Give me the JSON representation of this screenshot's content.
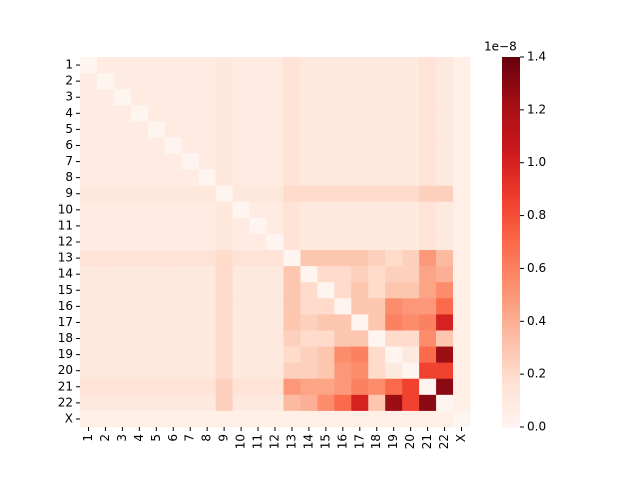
{
  "chart_data": {
    "type": "heatmap",
    "categories": [
      "1",
      "2",
      "3",
      "4",
      "5",
      "6",
      "7",
      "8",
      "9",
      "10",
      "11",
      "12",
      "13",
      "14",
      "15",
      "16",
      "17",
      "18",
      "19",
      "20",
      "21",
      "22",
      "X"
    ],
    "values": [
      [
        0,
        0.08,
        0.08,
        0.08,
        0.08,
        0.08,
        0.08,
        0.08,
        0.12,
        0.08,
        0.08,
        0.08,
        0.15,
        0.1,
        0.1,
        0.1,
        0.1,
        0.1,
        0.1,
        0.1,
        0.15,
        0.1,
        0.05
      ],
      [
        0.08,
        0,
        0.08,
        0.08,
        0.08,
        0.08,
        0.08,
        0.08,
        0.12,
        0.08,
        0.08,
        0.08,
        0.15,
        0.1,
        0.1,
        0.1,
        0.1,
        0.1,
        0.1,
        0.1,
        0.15,
        0.1,
        0.05
      ],
      [
        0.08,
        0.08,
        0,
        0.08,
        0.08,
        0.08,
        0.08,
        0.08,
        0.12,
        0.08,
        0.08,
        0.08,
        0.15,
        0.1,
        0.1,
        0.1,
        0.1,
        0.1,
        0.1,
        0.1,
        0.15,
        0.1,
        0.05
      ],
      [
        0.08,
        0.08,
        0.08,
        0,
        0.08,
        0.08,
        0.08,
        0.08,
        0.12,
        0.08,
        0.08,
        0.08,
        0.15,
        0.1,
        0.1,
        0.1,
        0.1,
        0.1,
        0.1,
        0.1,
        0.15,
        0.1,
        0.05
      ],
      [
        0.08,
        0.08,
        0.08,
        0.08,
        0,
        0.08,
        0.08,
        0.08,
        0.12,
        0.08,
        0.08,
        0.08,
        0.15,
        0.1,
        0.1,
        0.1,
        0.1,
        0.1,
        0.1,
        0.1,
        0.15,
        0.1,
        0.05
      ],
      [
        0.08,
        0.08,
        0.08,
        0.08,
        0.08,
        0,
        0.08,
        0.08,
        0.12,
        0.08,
        0.08,
        0.08,
        0.15,
        0.1,
        0.1,
        0.1,
        0.1,
        0.1,
        0.1,
        0.1,
        0.15,
        0.1,
        0.05
      ],
      [
        0.08,
        0.08,
        0.08,
        0.08,
        0.08,
        0.08,
        0,
        0.08,
        0.12,
        0.08,
        0.08,
        0.08,
        0.15,
        0.1,
        0.1,
        0.1,
        0.1,
        0.1,
        0.1,
        0.1,
        0.15,
        0.1,
        0.05
      ],
      [
        0.08,
        0.08,
        0.08,
        0.08,
        0.08,
        0.08,
        0.08,
        0,
        0.12,
        0.08,
        0.08,
        0.08,
        0.15,
        0.1,
        0.1,
        0.1,
        0.1,
        0.1,
        0.1,
        0.1,
        0.15,
        0.1,
        0.05
      ],
      [
        0.12,
        0.12,
        0.12,
        0.12,
        0.12,
        0.12,
        0.12,
        0.12,
        0,
        0.12,
        0.12,
        0.12,
        0.2,
        0.2,
        0.2,
        0.2,
        0.2,
        0.2,
        0.2,
        0.2,
        0.25,
        0.25,
        0.05
      ],
      [
        0.08,
        0.08,
        0.08,
        0.08,
        0.08,
        0.08,
        0.08,
        0.08,
        0.12,
        0,
        0.08,
        0.08,
        0.15,
        0.1,
        0.1,
        0.1,
        0.1,
        0.1,
        0.1,
        0.1,
        0.15,
        0.1,
        0.05
      ],
      [
        0.08,
        0.08,
        0.08,
        0.08,
        0.08,
        0.08,
        0.08,
        0.08,
        0.12,
        0.08,
        0,
        0.08,
        0.15,
        0.1,
        0.1,
        0.1,
        0.1,
        0.1,
        0.1,
        0.1,
        0.15,
        0.1,
        0.05
      ],
      [
        0.08,
        0.08,
        0.08,
        0.08,
        0.08,
        0.08,
        0.08,
        0.08,
        0.12,
        0.08,
        0.08,
        0,
        0.15,
        0.1,
        0.1,
        0.1,
        0.1,
        0.1,
        0.1,
        0.1,
        0.15,
        0.1,
        0.05
      ],
      [
        0.15,
        0.15,
        0.15,
        0.15,
        0.15,
        0.15,
        0.15,
        0.15,
        0.2,
        0.15,
        0.15,
        0.15,
        0,
        0.3,
        0.3,
        0.3,
        0.3,
        0.25,
        0.2,
        0.25,
        0.5,
        0.35,
        0.05
      ],
      [
        0.1,
        0.1,
        0.1,
        0.1,
        0.1,
        0.1,
        0.1,
        0.1,
        0.2,
        0.1,
        0.1,
        0.1,
        0.3,
        0,
        0.2,
        0.2,
        0.25,
        0.2,
        0.25,
        0.25,
        0.45,
        0.4,
        0.05
      ],
      [
        0.1,
        0.1,
        0.1,
        0.1,
        0.1,
        0.1,
        0.1,
        0.1,
        0.2,
        0.1,
        0.1,
        0.1,
        0.3,
        0.2,
        0,
        0.2,
        0.3,
        0.2,
        0.3,
        0.3,
        0.45,
        0.55,
        0.05
      ],
      [
        0.1,
        0.1,
        0.1,
        0.1,
        0.1,
        0.1,
        0.1,
        0.1,
        0.2,
        0.1,
        0.1,
        0.1,
        0.3,
        0.2,
        0.2,
        0,
        0.3,
        0.3,
        0.55,
        0.5,
        0.5,
        0.7,
        0.05
      ],
      [
        0.1,
        0.1,
        0.1,
        0.1,
        0.1,
        0.1,
        0.1,
        0.1,
        0.2,
        0.1,
        0.1,
        0.1,
        0.3,
        0.25,
        0.3,
        0.3,
        0,
        0.3,
        0.6,
        0.55,
        0.6,
        1.0,
        0.05
      ],
      [
        0.1,
        0.1,
        0.1,
        0.1,
        0.1,
        0.1,
        0.1,
        0.1,
        0.2,
        0.1,
        0.1,
        0.1,
        0.25,
        0.2,
        0.2,
        0.3,
        0.3,
        0,
        0.2,
        0.2,
        0.55,
        0.3,
        0.05
      ],
      [
        0.1,
        0.1,
        0.1,
        0.1,
        0.1,
        0.1,
        0.1,
        0.1,
        0.2,
        0.1,
        0.1,
        0.1,
        0.2,
        0.25,
        0.3,
        0.55,
        0.6,
        0.2,
        0,
        0.1,
        0.7,
        1.25,
        0.05
      ],
      [
        0.1,
        0.1,
        0.1,
        0.1,
        0.1,
        0.1,
        0.1,
        0.1,
        0.2,
        0.1,
        0.1,
        0.1,
        0.25,
        0.25,
        0.3,
        0.5,
        0.55,
        0.2,
        0.1,
        0,
        0.85,
        0.85,
        0.05
      ],
      [
        0.15,
        0.15,
        0.15,
        0.15,
        0.15,
        0.15,
        0.15,
        0.15,
        0.25,
        0.15,
        0.15,
        0.15,
        0.5,
        0.45,
        0.45,
        0.5,
        0.6,
        0.55,
        0.7,
        0.85,
        0,
        1.3,
        0.05
      ],
      [
        0.1,
        0.1,
        0.1,
        0.1,
        0.1,
        0.1,
        0.1,
        0.1,
        0.25,
        0.1,
        0.1,
        0.1,
        0.35,
        0.4,
        0.55,
        0.7,
        1.0,
        0.3,
        1.25,
        0.85,
        1.3,
        0,
        0.05
      ],
      [
        0.05,
        0.05,
        0.05,
        0.05,
        0.05,
        0.05,
        0.05,
        0.05,
        0.05,
        0.05,
        0.05,
        0.05,
        0.05,
        0.05,
        0.05,
        0.05,
        0.05,
        0.05,
        0.05,
        0.05,
        0.05,
        0.05,
        0
      ]
    ],
    "clim": [
      0,
      1.4
    ],
    "cticks": [
      {
        "value": 0,
        "label": "0.0"
      },
      {
        "value": 0.2,
        "label": "0.2"
      },
      {
        "value": 0.4,
        "label": "0.4"
      },
      {
        "value": 0.6,
        "label": "0.6"
      },
      {
        "value": 0.8,
        "label": "0.8"
      },
      {
        "value": 1.0,
        "label": "1.0"
      },
      {
        "value": 1.2,
        "label": "1.2"
      },
      {
        "value": 1.4,
        "label": "1.4"
      }
    ],
    "colorbar_label": "1e−8",
    "colormap": [
      "#fff5f0",
      "#fee0d2",
      "#fcbba1",
      "#fc9272",
      "#fb6a4a",
      "#ef3b2c",
      "#cb181d",
      "#a50f15",
      "#67000d"
    ]
  }
}
